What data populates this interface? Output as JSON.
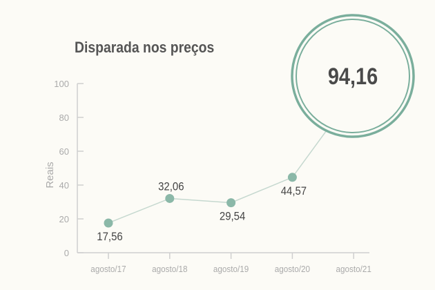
{
  "chart_data": {
    "type": "line",
    "title": "Disparada nos preços",
    "ylabel": "Reais",
    "xlabel": "",
    "categories": [
      "agosto/17",
      "agosto/18",
      "agosto/19",
      "agosto/20",
      "agosto/21"
    ],
    "values": [
      17.56,
      32.06,
      29.54,
      44.57,
      94.16
    ],
    "labels": [
      "17,56",
      "32,06",
      "29,54",
      "44,57",
      "94,16"
    ],
    "ylim": [
      0,
      100
    ],
    "yticks": [
      0,
      20,
      40,
      60,
      80,
      100
    ],
    "grid": false,
    "highlight_index": 4,
    "colors": {
      "point": "#8bb8a8",
      "line": "#c5d8cf",
      "circle": "#7aae9c",
      "text": "#444444",
      "axis": "#cfcfcf",
      "tick_label": "#aaaaaa"
    }
  }
}
